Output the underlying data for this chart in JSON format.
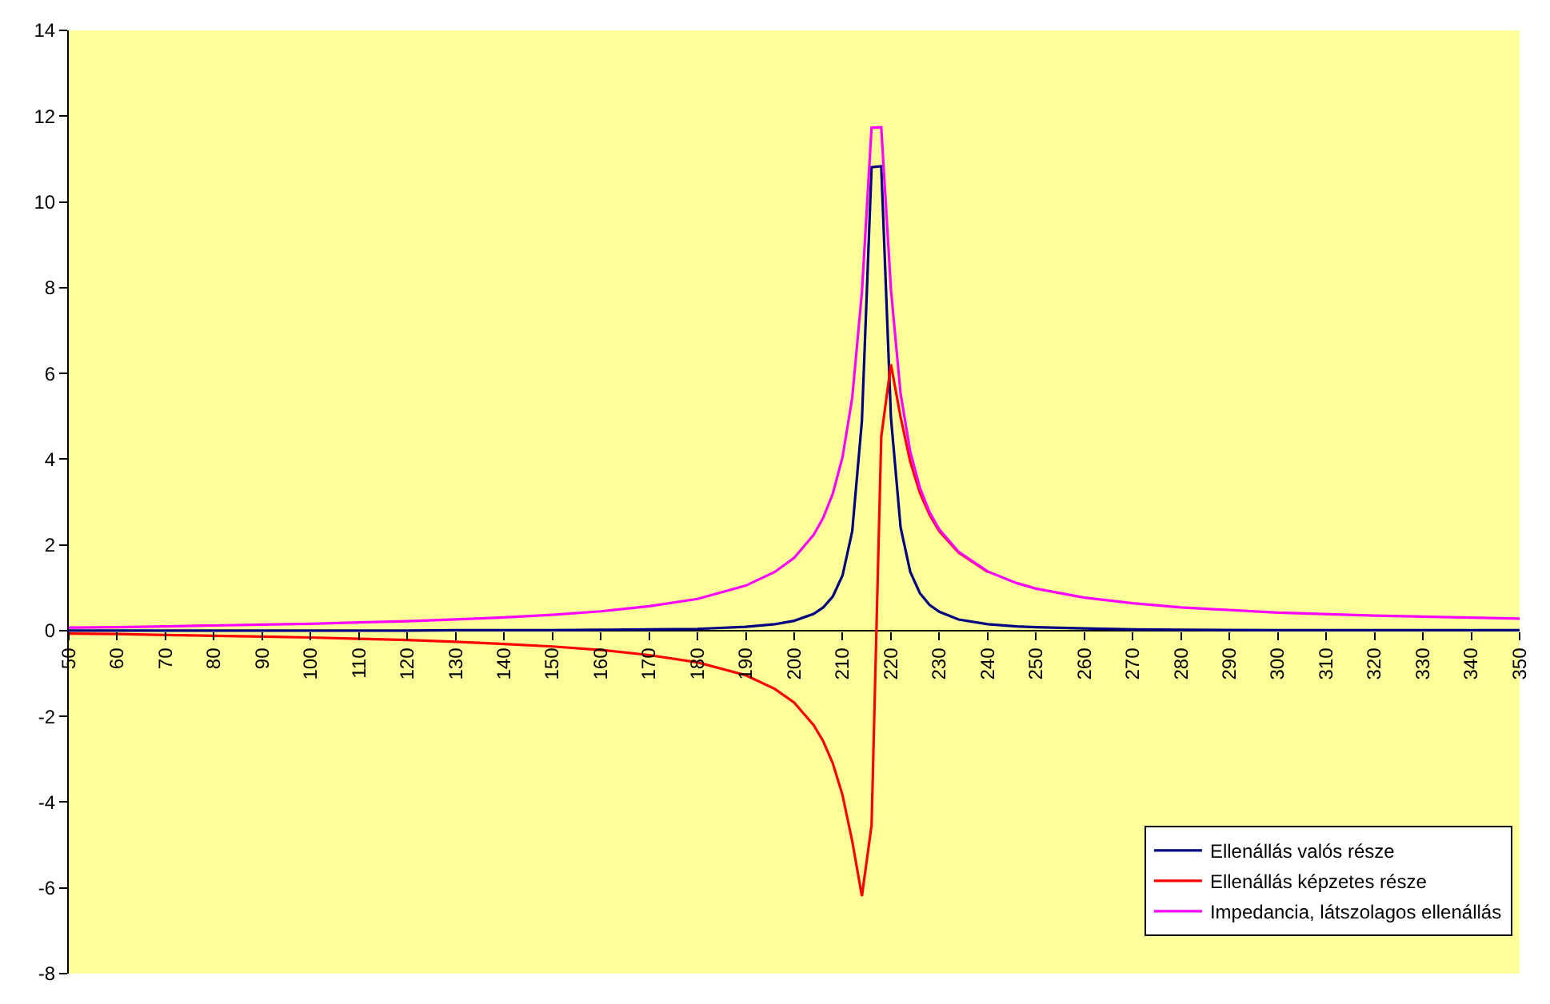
{
  "chart_data": {
    "type": "line",
    "x": [
      50,
      60,
      70,
      80,
      90,
      100,
      110,
      120,
      130,
      140,
      150,
      160,
      170,
      180,
      190,
      196,
      200,
      204,
      206,
      208,
      210,
      212,
      214,
      216,
      218,
      220,
      222,
      224,
      226,
      228,
      230,
      234,
      240,
      246,
      250,
      260,
      270,
      280,
      300,
      320,
      350
    ],
    "series": [
      {
        "name": "Ellenállás valós része",
        "color": "#000080",
        "values": [
          0,
          0,
          0,
          0,
          0,
          0,
          0,
          0,
          0.01,
          0.01,
          0.01,
          0.02,
          0.03,
          0.04,
          0.09,
          0.15,
          0.23,
          0.39,
          0.54,
          0.8,
          1.29,
          2.32,
          4.89,
          10.81,
          10.83,
          4.98,
          2.41,
          1.37,
          0.87,
          0.6,
          0.44,
          0.26,
          0.15,
          0.1,
          0.08,
          0.05,
          0.03,
          0.02,
          0.01,
          0.01,
          0.01
        ]
      },
      {
        "name": "Ellenállás képzetes része",
        "color": "#ff0000",
        "values": [
          -0.07,
          -0.08,
          -0.1,
          -0.12,
          -0.14,
          -0.16,
          -0.19,
          -0.22,
          -0.26,
          -0.31,
          -0.37,
          -0.45,
          -0.57,
          -0.74,
          -1.04,
          -1.36,
          -1.68,
          -2.2,
          -2.58,
          -3.1,
          -3.84,
          -4.91,
          -6.19,
          -4.54,
          4.52,
          6.21,
          4.98,
          3.94,
          3.21,
          2.7,
          2.32,
          1.82,
          1.37,
          null,
          null,
          null,
          null,
          null,
          null,
          null,
          null
        ]
      },
      {
        "name": "Impedancia, látszolagos ellenállás",
        "color": "#ff00ff",
        "values": [
          0.07,
          0.08,
          0.1,
          0.12,
          0.14,
          0.16,
          0.19,
          0.22,
          0.26,
          0.31,
          0.37,
          0.45,
          0.57,
          0.74,
          1.05,
          1.37,
          1.7,
          2.23,
          2.63,
          3.2,
          4.05,
          5.43,
          7.89,
          11.73,
          11.74,
          7.96,
          5.53,
          4.17,
          3.33,
          2.76,
          2.36,
          1.84,
          1.38,
          1.11,
          0.98,
          0.77,
          0.64,
          0.54,
          0.42,
          0.35,
          0.28
        ]
      }
    ],
    "xlim": [
      50,
      350
    ],
    "xticks": [
      50,
      60,
      70,
      80,
      90,
      100,
      110,
      120,
      130,
      140,
      150,
      160,
      170,
      180,
      190,
      200,
      210,
      220,
      230,
      240,
      250,
      260,
      270,
      280,
      290,
      300,
      310,
      320,
      330,
      340,
      350
    ],
    "ylim": [
      -8,
      14
    ],
    "yticks": [
      -8,
      -6,
      -4,
      -2,
      0,
      2,
      4,
      6,
      8,
      10,
      12,
      14
    ],
    "grid": false,
    "legend": "bottom right",
    "marker": "none",
    "line_style": "solid"
  }
}
